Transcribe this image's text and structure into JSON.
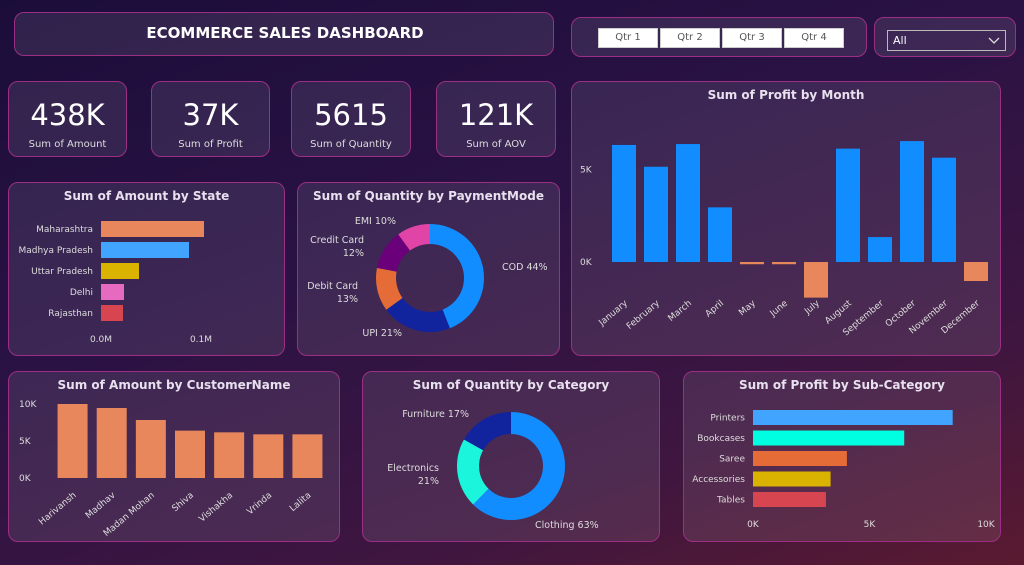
{
  "header": {
    "title": "ECOMMERCE SALES DASHBOARD"
  },
  "quarter_slicer": {
    "options": [
      "Qtr 1",
      "Qtr 2",
      "Qtr 3",
      "Qtr 4"
    ]
  },
  "dropdown": {
    "selected": "All",
    "icon": "chevron-down-icon"
  },
  "kpis": [
    {
      "value": "438K",
      "label": "Sum of Amount"
    },
    {
      "value": "37K",
      "label": "Sum of Profit"
    },
    {
      "value": "5615",
      "label": "Sum of Quantity"
    },
    {
      "value": "121K",
      "label": "Sum of AOV"
    }
  ],
  "colors": {
    "positive": "#118DFF",
    "negative": "#E8875C",
    "border": "#9b2f85"
  },
  "chart_data": [
    {
      "id": "state",
      "type": "bar",
      "orientation": "horizontal",
      "title": "Sum of Amount by State",
      "categories": [
        "Maharashtra",
        "Madhya Pradesh",
        "Uttar Pradesh",
        "Delhi",
        "Rajasthan"
      ],
      "values": [
        0.103,
        0.088,
        0.038,
        0.023,
        0.022
      ],
      "xlim": [
        0,
        0.1
      ],
      "xticks": [
        "0.0M",
        "0.1M"
      ],
      "colors": [
        "#E8875C",
        "#41A4FF",
        "#D9B300",
        "#E66BC0",
        "#D64550"
      ]
    },
    {
      "id": "payment",
      "type": "pie",
      "donut": true,
      "title": "Sum of Quantity by PaymentMode",
      "slices": [
        {
          "label": "COD",
          "value": 44,
          "text": "COD 44%",
          "color": "#118DFF"
        },
        {
          "label": "UPI",
          "value": 21,
          "text": "UPI 21%",
          "color": "#12239E"
        },
        {
          "label": "Debit Card",
          "value": 13,
          "text": [
            "Debit Card",
            "13%"
          ],
          "color": "#E66C37"
        },
        {
          "label": "Credit Card",
          "value": 12,
          "text": [
            "Credit Card",
            "12%"
          ],
          "color": "#6B007B"
        },
        {
          "label": "EMI",
          "value": 10,
          "text": "EMI 10%",
          "color": "#E044A7"
        }
      ]
    },
    {
      "id": "month",
      "type": "bar",
      "title": "Sum of Profit by Month",
      "categories": [
        "January",
        "February",
        "March",
        "April",
        "May",
        "June",
        "July",
        "August",
        "September",
        "October",
        "November",
        "December"
      ],
      "values": [
        6340,
        5160,
        6390,
        2960,
        -120,
        -120,
        -1930,
        6140,
        1350,
        6550,
        5650,
        -1030
      ],
      "yticks": [
        {
          "v": 0,
          "t": "0K"
        },
        {
          "v": 5000,
          "t": "5K"
        }
      ]
    },
    {
      "id": "customer",
      "type": "bar",
      "title": "Sum of Amount by CustomerName",
      "categories": [
        "Harivansh",
        "Madhav",
        "Madan Mohan",
        "Shiva",
        "Vishakha",
        "Vrinda",
        "Lalita"
      ],
      "values": [
        10000,
        9460,
        7840,
        6400,
        6170,
        5900,
        5900
      ],
      "yticks": [
        {
          "v": 0,
          "t": "0K"
        },
        {
          "v": 5000,
          "t": "5K"
        },
        {
          "v": 10000,
          "t": "10K"
        }
      ]
    },
    {
      "id": "category",
      "type": "pie",
      "donut": true,
      "title": "Sum of Quantity by Category",
      "slices": [
        {
          "label": "Clothing",
          "value": 63,
          "text": "Clothing 63%",
          "color": "#118DFF"
        },
        {
          "label": "Electronics",
          "value": 21,
          "text": [
            "Electronics",
            "21%"
          ],
          "color": "#1AF5DC"
        },
        {
          "label": "Furniture",
          "value": 17,
          "text": "Furniture 17%",
          "color": "#12239E"
        }
      ]
    },
    {
      "id": "subcat",
      "type": "bar",
      "orientation": "horizontal",
      "title": "Sum of Profit by Sub-Category",
      "categories": [
        "Printers",
        "Bookcases",
        "Saree",
        "Accessories",
        "Tables"
      ],
      "values": [
        8570,
        6490,
        4030,
        3330,
        3130
      ],
      "xlim": [
        0,
        10000
      ],
      "xticks": [
        "0K",
        "5K",
        "10K"
      ],
      "colors": [
        "#41A4FF",
        "#00FFE0",
        "#E66C37",
        "#D9B300",
        "#D64550"
      ]
    }
  ]
}
